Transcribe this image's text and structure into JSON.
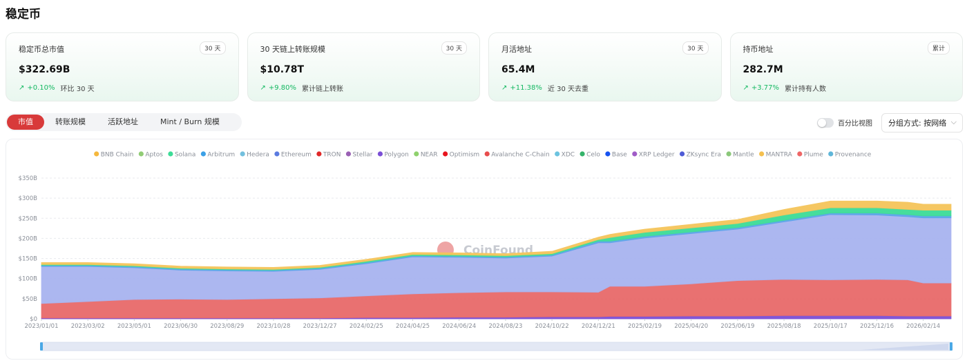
{
  "page_title": "稳定币",
  "cards": [
    {
      "title": "稳定币总市值",
      "badge": "30 天",
      "value": "$322.69B",
      "change": "+0.10%",
      "note": "环比 30 天"
    },
    {
      "title": "30 天链上转账规模",
      "badge": "30 天",
      "value": "$10.78T",
      "change": "+9.80%",
      "note": "累计链上转账"
    },
    {
      "title": "月活地址",
      "badge": "30 天",
      "value": "65.4M",
      "change": "+11.38%",
      "note": "近 30 天去重"
    },
    {
      "title": "持币地址",
      "badge": "累计",
      "value": "282.7M",
      "change": "+3.77%",
      "note": "累计持有人数"
    }
  ],
  "tabs": [
    "市值",
    "转账规模",
    "活跃地址",
    "Mint / Burn 规模"
  ],
  "percent_toggle_label": "百分比视图",
  "group_select": "分组方式: 按网络",
  "watermark": "CoinFound",
  "icons": {
    "up_arrow": "↗",
    "chevron": "⌵"
  },
  "colors": {
    "accent": "#d83a3a",
    "positive": "#14b861"
  },
  "chart_data": {
    "type": "area",
    "stacked": true,
    "legend_position": "top",
    "grid": "horizontal dashed",
    "y_ticks": [
      "$0",
      "$50B",
      "$100B",
      "$150B",
      "$200B",
      "$250B",
      "$300B",
      "$350B"
    ],
    "ylim": [
      0,
      350
    ],
    "x_ticks": [
      "2023/01/01",
      "2023/03/02",
      "2023/05/01",
      "2023/06/30",
      "2023/08/29",
      "2023/10/28",
      "2023/12/27",
      "2024/02/25",
      "2024/04/25",
      "2024/06/24",
      "2024/08/23",
      "2024/10/22",
      "2024/12/21",
      "2025/02/19",
      "2025/04/20",
      "2025/06/19",
      "2025/08/18",
      "2025/10/17",
      "2025/12/16",
      "2026/02/14"
    ],
    "x": [
      "2023/01/01",
      "2023/03/02",
      "2023/05/01",
      "2023/06/30",
      "2023/08/29",
      "2023/10/28",
      "2023/12/27",
      "2024/02/25",
      "2024/04/25",
      "2024/06/24",
      "2024/08/23",
      "2024/10/22",
      "2024/12/21",
      "2025/01/05",
      "2025/02/19",
      "2025/04/20",
      "2025/06/19",
      "2025/08/18",
      "2025/10/17",
      "2025/12/16",
      "2026/01/25",
      "2026/02/14",
      "2026/03/22"
    ],
    "legend": [
      {
        "name": "BNB Chain",
        "color": "#f5b83d"
      },
      {
        "name": "Aptos",
        "color": "#91cc75"
      },
      {
        "name": "Solana",
        "color": "#3ddc97"
      },
      {
        "name": "Arbitrum",
        "color": "#3ba0e6"
      },
      {
        "name": "Hedera",
        "color": "#73c0de"
      },
      {
        "name": "Ethereum",
        "color": "#5b7be0"
      },
      {
        "name": "TRON",
        "color": "#e02828"
      },
      {
        "name": "Stellar",
        "color": "#9a60b4"
      },
      {
        "name": "Polygon",
        "color": "#7b4fd6"
      },
      {
        "name": "NEAR",
        "color": "#8fd16d"
      },
      {
        "name": "Optimism",
        "color": "#e8141e"
      },
      {
        "name": "Avalanche C-Chain",
        "color": "#e84d4d"
      },
      {
        "name": "XDC",
        "color": "#6cc3df"
      },
      {
        "name": "Celo",
        "color": "#35b36a"
      },
      {
        "name": "Base",
        "color": "#1652f0"
      },
      {
        "name": "XRP Ledger",
        "color": "#a05cc7"
      },
      {
        "name": "ZKsync Era",
        "color": "#4e5bd6"
      },
      {
        "name": "Mantle",
        "color": "#8bc77a"
      },
      {
        "name": "MANTRA",
        "color": "#f5c04f"
      },
      {
        "name": "Plume",
        "color": "#ee6666"
      },
      {
        "name": "Provenance",
        "color": "#5fb6d9"
      }
    ],
    "series": [
      {
        "name": "Polygon",
        "fill": "#7b4fd6",
        "values": [
          2,
          2,
          2,
          2,
          2,
          2,
          2,
          3,
          3,
          4,
          4,
          5,
          5,
          6,
          6,
          7,
          7,
          8,
          8,
          8,
          7,
          7,
          7
        ]
      },
      {
        "name": "TRON",
        "fill": "#e86a6a",
        "values": [
          36,
          41,
          46,
          47,
          46,
          48,
          50,
          54,
          59,
          61,
          63,
          62,
          61,
          75,
          75,
          80,
          88,
          90,
          89,
          90,
          90,
          82,
          82
        ]
      },
      {
        "name": "Ethereum",
        "fill": "#a8b4f0",
        "values": [
          92,
          87,
          79,
          72,
          71,
          68,
          71,
          80,
          92,
          88,
          84,
          89,
          123,
          108,
          120,
          125,
          128,
          143,
          162,
          160,
          157,
          162,
          162
        ]
      },
      {
        "name": "Arbitrum",
        "fill": "#5aa5e8",
        "values": [
          3,
          3,
          3,
          3,
          3,
          3,
          3,
          3,
          3,
          3,
          3,
          3,
          4,
          4,
          4,
          4,
          4,
          4,
          4,
          5,
          5,
          5,
          5
        ]
      },
      {
        "name": "Solana",
        "fill": "#3ddc97",
        "values": [
          2,
          2,
          2,
          2,
          2,
          2,
          2,
          3,
          3,
          3,
          3,
          3,
          4,
          9,
          10,
          10,
          10,
          13,
          13,
          13,
          13,
          14,
          14
        ]
      },
      {
        "name": "BNB Chain",
        "fill": "#f5c55a",
        "values": [
          5,
          5,
          5,
          5,
          5,
          5,
          5,
          5,
          5,
          5,
          5,
          6,
          6,
          8,
          8,
          9,
          10,
          14,
          17,
          17,
          18,
          15,
          15
        ]
      }
    ]
  }
}
